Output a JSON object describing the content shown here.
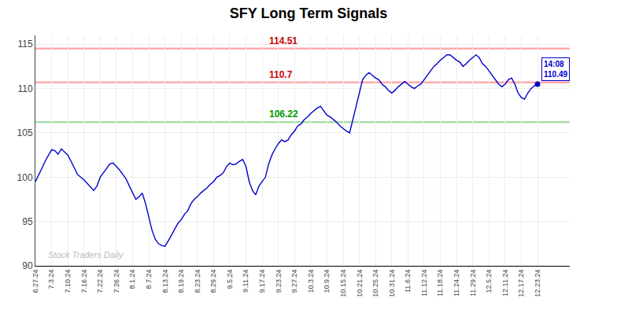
{
  "chart_data": {
    "type": "line",
    "title": "SFY Long Term Signals",
    "categories": [
      "6.27.24",
      null,
      null,
      null,
      null,
      "7.3.24",
      null,
      null,
      null,
      null,
      "7.10.24",
      null,
      null,
      null,
      null,
      "7.16.24",
      null,
      null,
      null,
      null,
      "7.22.24",
      null,
      null,
      null,
      null,
      "7.26.24",
      null,
      null,
      null,
      null,
      "8.1.24",
      null,
      null,
      null,
      null,
      "8.7.24",
      null,
      null,
      null,
      null,
      "8.13.24",
      null,
      null,
      null,
      null,
      "8.19.24",
      null,
      null,
      null,
      null,
      "8.23.24",
      null,
      null,
      null,
      null,
      "8.29.24",
      null,
      null,
      null,
      null,
      "9.5.24",
      null,
      null,
      null,
      null,
      "9.11.24",
      null,
      null,
      null,
      null,
      "9.17.24",
      null,
      null,
      null,
      null,
      "9.23.24",
      null,
      null,
      null,
      null,
      "9.27.24",
      null,
      null,
      null,
      null,
      "10.3.24",
      null,
      null,
      null,
      null,
      "10.9.24",
      null,
      null,
      null,
      null,
      "10.15.24",
      null,
      null,
      null,
      null,
      "10.21.24",
      null,
      null,
      null,
      null,
      "10.25.24",
      null,
      null,
      null,
      null,
      "10.31.24",
      null,
      null,
      null,
      null,
      "11.6.24",
      null,
      null,
      null,
      null,
      "11.12.24",
      null,
      null,
      null,
      null,
      "11.18.24",
      null,
      null,
      null,
      null,
      "11.24.24",
      null,
      null,
      null,
      null,
      "11.29.24",
      null,
      null,
      null,
      null,
      "12.5.24",
      null,
      null,
      null,
      null,
      "12.11.24",
      null,
      null,
      null,
      null,
      "12.17.24",
      null,
      null,
      null,
      null,
      "12.23.24"
    ],
    "values": [
      99.5,
      100.2,
      101.0,
      101.8,
      102.5,
      103.1,
      103.0,
      102.6,
      103.2,
      102.8,
      102.5,
      101.8,
      101.0,
      100.3,
      100.0,
      99.7,
      99.3,
      98.9,
      98.5,
      99.0,
      100.0,
      100.5,
      101.0,
      101.5,
      101.6,
      101.2,
      100.8,
      100.3,
      99.8,
      99.0,
      98.3,
      97.5,
      97.8,
      98.2,
      97.0,
      95.5,
      94.0,
      93.0,
      92.5,
      92.3,
      92.2,
      92.8,
      93.5,
      94.2,
      94.8,
      95.2,
      95.8,
      96.2,
      97.0,
      97.5,
      97.8,
      98.2,
      98.5,
      98.8,
      99.2,
      99.5,
      100.0,
      100.2,
      100.5,
      101.2,
      101.6,
      101.4,
      101.5,
      101.8,
      102.0,
      101.2,
      99.5,
      98.5,
      98.0,
      99.0,
      99.5,
      100.0,
      101.5,
      102.5,
      103.2,
      103.8,
      104.2,
      104.0,
      104.2,
      104.8,
      105.2,
      105.8,
      106.0,
      106.5,
      106.8,
      107.2,
      107.5,
      107.8,
      108.0,
      107.5,
      107.0,
      106.8,
      106.5,
      106.2,
      105.8,
      105.5,
      105.2,
      105.0,
      106.5,
      108.0,
      109.5,
      111.0,
      111.5,
      111.8,
      111.5,
      111.2,
      111.0,
      110.5,
      110.2,
      109.8,
      109.5,
      109.8,
      110.2,
      110.5,
      110.8,
      110.5,
      110.2,
      110.0,
      110.3,
      110.5,
      111.0,
      111.5,
      112.0,
      112.5,
      112.8,
      113.2,
      113.5,
      113.8,
      113.8,
      113.5,
      113.2,
      113.0,
      112.5,
      112.8,
      113.2,
      113.5,
      113.8,
      113.5,
      112.8,
      112.5,
      112.0,
      111.5,
      111.0,
      110.5,
      110.2,
      110.5,
      111.0,
      111.2,
      110.5,
      109.5,
      109.0,
      108.8,
      109.5,
      110.0,
      110.3,
      110.49
    ],
    "color": "#0000cc",
    "ylim": [
      90,
      116
    ],
    "yticks": [
      90,
      95,
      100,
      105,
      110,
      115
    ],
    "grid": true,
    "reference_lines": [
      {
        "value": 114.51,
        "label": "114.51",
        "color": "#ffaaaa",
        "label_color": "#cc0000"
      },
      {
        "value": 110.7,
        "label": "110.7",
        "color": "#ffaaaa",
        "label_color": "#cc0000"
      },
      {
        "value": 106.22,
        "label": "106.22",
        "color": "#aaddaa",
        "label_color": "#009900"
      }
    ],
    "watermark": {
      "text": "Stock Traders Daily",
      "color": "#bbbbbb"
    },
    "end_label": {
      "lines": [
        "14:08",
        "110.49"
      ],
      "color": "#0000cc"
    }
  }
}
